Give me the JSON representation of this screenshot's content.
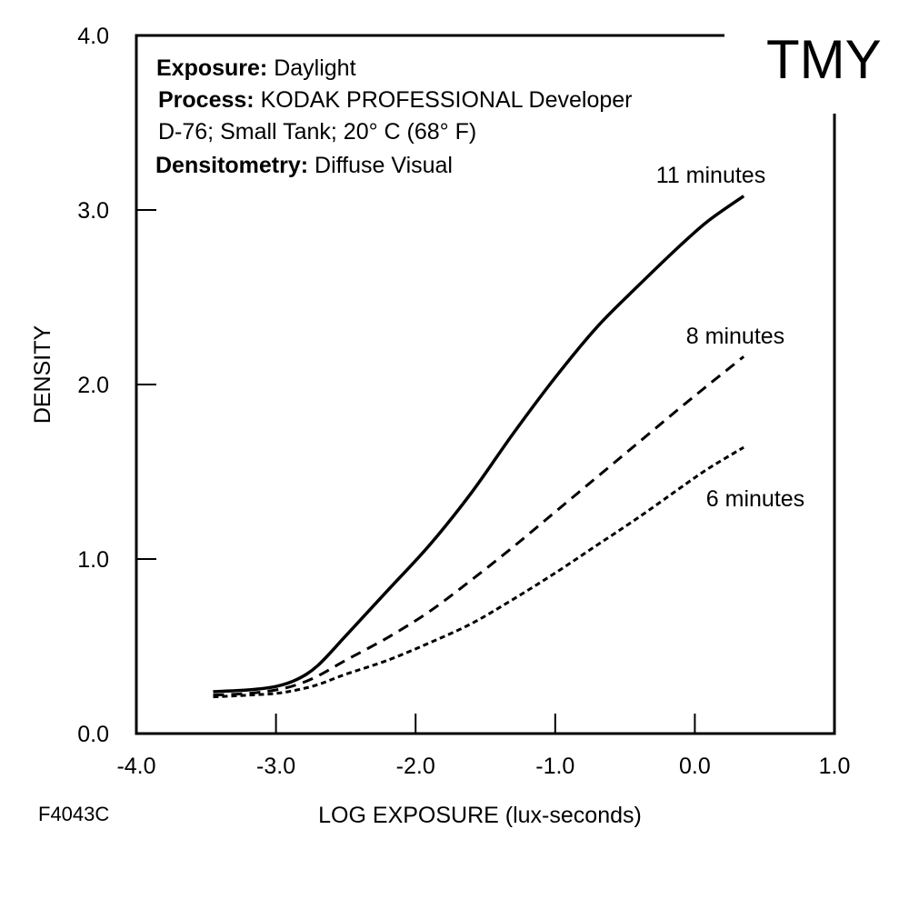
{
  "chart_data": {
    "type": "line",
    "film": "TMY",
    "figure_code": "F4043C",
    "xlabel": "LOG EXPOSURE (lux-seconds)",
    "ylabel": "DENSITY",
    "xlim": [
      -4.0,
      1.0
    ],
    "ylim": [
      0.0,
      4.0
    ],
    "x_ticks": [
      -4.0,
      -3.0,
      -2.0,
      -1.0,
      0.0,
      1.0
    ],
    "x_tick_labels": [
      "-4.0",
      "-3.0",
      "-2.0",
      "-1.0",
      "0.0",
      "1.0"
    ],
    "y_ticks": [
      0.0,
      1.0,
      2.0,
      3.0,
      4.0
    ],
    "y_tick_labels": [
      "0.0",
      "1.0",
      "2.0",
      "3.0",
      "4.0"
    ],
    "grid": false,
    "info": [
      {
        "bold": "Exposure:",
        "text": " Daylight"
      },
      {
        "bold": "Process:",
        "text": " KODAK PROFESSIONAL Developer"
      },
      {
        "bold": "",
        "text": "D-76; Small Tank; 20° C (68° F)"
      },
      {
        "bold": "Densitometry:",
        "text": " Diffuse Visual"
      }
    ],
    "series": [
      {
        "name": "11 minutes",
        "style": "solid",
        "x": [
          -3.45,
          -3.2,
          -3.0,
          -2.85,
          -2.7,
          -2.5,
          -2.2,
          -1.9,
          -1.6,
          -1.3,
          -1.0,
          -0.7,
          -0.4,
          -0.1,
          0.1,
          0.35
        ],
        "y": [
          0.24,
          0.25,
          0.27,
          0.31,
          0.39,
          0.56,
          0.82,
          1.08,
          1.38,
          1.72,
          2.04,
          2.33,
          2.57,
          2.8,
          2.94,
          3.08
        ]
      },
      {
        "name": "8 minutes",
        "style": "dashed",
        "x": [
          -3.45,
          -3.2,
          -3.0,
          -2.85,
          -2.7,
          -2.5,
          -2.2,
          -1.9,
          -1.6,
          -1.3,
          -1.0,
          -0.7,
          -0.4,
          -0.1,
          0.1,
          0.35
        ],
        "y": [
          0.22,
          0.23,
          0.25,
          0.28,
          0.33,
          0.42,
          0.55,
          0.7,
          0.88,
          1.07,
          1.27,
          1.47,
          1.67,
          1.87,
          2.0,
          2.16
        ]
      },
      {
        "name": "6 minutes",
        "style": "dotted",
        "x": [
          -3.45,
          -3.2,
          -3.0,
          -2.85,
          -2.7,
          -2.5,
          -2.2,
          -1.9,
          -1.6,
          -1.3,
          -1.0,
          -0.7,
          -0.4,
          -0.1,
          0.1,
          0.35
        ],
        "y": [
          0.21,
          0.22,
          0.23,
          0.25,
          0.28,
          0.34,
          0.42,
          0.52,
          0.63,
          0.77,
          0.92,
          1.08,
          1.24,
          1.41,
          1.52,
          1.64
        ]
      }
    ]
  }
}
